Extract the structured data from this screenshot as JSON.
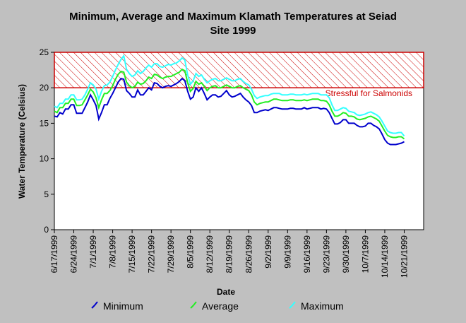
{
  "chart_data": {
    "type": "line",
    "title_lines": [
      "Minimum, Average and Maximum Klamath Temperatures at Seiad",
      "Site 1999"
    ],
    "x_label": "Date",
    "y_label": "Water Temperature (Celsius)",
    "ylim": [
      0,
      25
    ],
    "yticks": [
      0,
      5,
      10,
      15,
      20,
      25
    ],
    "categories": [
      "6/17/1999",
      null,
      null,
      null,
      null,
      null,
      null,
      "6/24/1999",
      null,
      null,
      null,
      null,
      null,
      null,
      "7/1/1999",
      null,
      null,
      null,
      null,
      null,
      null,
      "7/8/1999",
      null,
      null,
      null,
      null,
      null,
      null,
      "7/15/1999",
      null,
      null,
      null,
      null,
      null,
      null,
      "7/22/1999",
      null,
      null,
      null,
      null,
      null,
      null,
      "7/29/1999",
      null,
      null,
      null,
      null,
      null,
      null,
      "8/5/1999",
      null,
      null,
      null,
      null,
      null,
      null,
      "8/12/1999",
      null,
      null,
      null,
      null,
      null,
      null,
      "8/19/1999",
      null,
      null,
      null,
      null,
      null,
      null,
      "8/26/1999",
      null,
      null,
      null,
      null,
      null,
      null,
      "9/2/1999",
      null,
      null,
      null,
      null,
      null,
      null,
      "9/9/1999",
      null,
      null,
      null,
      null,
      null,
      null,
      "9/16/1999",
      null,
      null,
      null,
      null,
      null,
      null,
      "9/23/1999",
      null,
      null,
      null,
      null,
      null,
      null,
      "9/30/1999",
      null,
      null,
      null,
      null,
      null,
      null,
      "10/7/1999",
      null,
      null,
      null,
      null,
      null,
      null,
      "10/14/1999",
      null,
      null,
      null,
      null,
      null,
      null,
      "10/21/1999",
      null,
      null,
      null,
      null,
      null,
      null,
      null
    ],
    "threshold": {
      "from": 20,
      "to": 25,
      "label": "Stressful for Salmonids",
      "color": "#cc0000"
    },
    "series": [
      {
        "name": "Minimum",
        "color": "#0000cc",
        "values": [
          16.0,
          15.9,
          16.5,
          16.3,
          17.0,
          17.0,
          17.6,
          17.6,
          16.4,
          16.4,
          16.4,
          17.2,
          18.0,
          19.0,
          18.3,
          17.5,
          15.6,
          16.5,
          17.6,
          17.6,
          18.5,
          19.2,
          20.0,
          20.8,
          21.3,
          21.2,
          19.6,
          19.2,
          18.7,
          18.7,
          19.7,
          19.0,
          19.0,
          19.5,
          20.0,
          19.7,
          20.7,
          20.6,
          20.2,
          20.0,
          20.2,
          20.3,
          20.2,
          20.4,
          20.6,
          20.9,
          21.3,
          21.0,
          19.5,
          18.4,
          18.7,
          20.0,
          19.5,
          20.0,
          19.2,
          18.3,
          18.7,
          19.0,
          19.0,
          18.7,
          18.8,
          19.2,
          19.6,
          19.0,
          18.7,
          18.8,
          19.0,
          19.2,
          18.7,
          18.3,
          18.0,
          17.5,
          16.5,
          16.5,
          16.7,
          16.8,
          16.9,
          16.8,
          17.0,
          17.2,
          17.2,
          17.1,
          17.0,
          17.0,
          17.0,
          17.1,
          17.1,
          17.0,
          17.0,
          17.0,
          17.2,
          17.0,
          17.1,
          17.2,
          17.2,
          17.2,
          17.0,
          17.1,
          17.0,
          16.5,
          15.7,
          14.9,
          14.9,
          15.1,
          15.5,
          15.5,
          15.0,
          15.0,
          15.0,
          14.7,
          14.5,
          14.5,
          14.6,
          15.0,
          15.0,
          14.7,
          14.5,
          14.2,
          13.5,
          12.7,
          12.2,
          12.0,
          12.0,
          12.0,
          12.1,
          12.2,
          12.4,
          null,
          null,
          null,
          null,
          null,
          null,
          null
        ]
      },
      {
        "name": "Average",
        "color": "#22ee22",
        "values": [
          16.7,
          16.5,
          17.2,
          17.2,
          17.8,
          17.8,
          18.4,
          18.4,
          17.5,
          17.5,
          17.6,
          18.3,
          19.0,
          19.8,
          19.4,
          18.6,
          17.2,
          18.3,
          19.2,
          19.2,
          19.6,
          20.3,
          21.2,
          21.9,
          22.3,
          22.2,
          20.8,
          20.3,
          20.0,
          20.2,
          20.8,
          20.5,
          20.6,
          21.0,
          21.5,
          21.3,
          21.9,
          21.8,
          21.5,
          21.3,
          21.5,
          21.6,
          21.6,
          21.8,
          22.0,
          22.2,
          22.6,
          22.4,
          20.7,
          19.5,
          19.9,
          20.9,
          20.5,
          20.7,
          20.2,
          19.6,
          20.0,
          20.2,
          20.3,
          20.0,
          20.0,
          20.2,
          20.4,
          20.2,
          20.0,
          20.0,
          20.2,
          20.3,
          20.0,
          19.8,
          19.6,
          19.0,
          18.0,
          17.6,
          17.8,
          17.9,
          18.0,
          18.0,
          18.2,
          18.4,
          18.4,
          18.3,
          18.2,
          18.2,
          18.2,
          18.3,
          18.3,
          18.2,
          18.2,
          18.2,
          18.3,
          18.2,
          18.3,
          18.4,
          18.4,
          18.4,
          18.2,
          18.2,
          18.1,
          17.6,
          16.7,
          16.0,
          16.0,
          16.2,
          16.5,
          16.4,
          16.0,
          16.0,
          15.9,
          15.6,
          15.5,
          15.6,
          15.7,
          15.9,
          16.0,
          15.8,
          15.6,
          15.3,
          14.6,
          13.9,
          13.3,
          13.1,
          13.0,
          13.0,
          13.1,
          13.1,
          12.8,
          null,
          null,
          null,
          null,
          null,
          null,
          null
        ]
      },
      {
        "name": "Maximum",
        "color": "#33ffff",
        "values": [
          17.4,
          17.2,
          17.8,
          17.8,
          18.4,
          18.4,
          19.0,
          19.0,
          18.3,
          18.3,
          18.4,
          19.0,
          19.8,
          20.7,
          20.4,
          19.8,
          18.4,
          19.5,
          20.3,
          20.4,
          20.8,
          21.6,
          22.5,
          23.3,
          24.0,
          24.5,
          22.6,
          22.0,
          21.6,
          21.8,
          22.4,
          22.0,
          22.3,
          22.8,
          23.2,
          22.9,
          23.4,
          23.4,
          23.0,
          22.9,
          23.1,
          23.3,
          23.2,
          23.4,
          23.5,
          23.8,
          24.2,
          23.9,
          21.8,
          20.5,
          21.0,
          22.0,
          21.6,
          21.8,
          21.2,
          20.7,
          21.0,
          21.2,
          21.3,
          21.0,
          21.0,
          21.2,
          21.4,
          21.2,
          21.0,
          21.0,
          21.2,
          21.3,
          20.9,
          20.6,
          20.4,
          19.8,
          18.9,
          18.5,
          18.7,
          18.8,
          18.9,
          18.9,
          19.1,
          19.2,
          19.2,
          19.2,
          19.0,
          19.0,
          19.0,
          19.1,
          19.1,
          19.0,
          19.0,
          19.0,
          19.1,
          19.0,
          19.1,
          19.2,
          19.2,
          19.2,
          19.0,
          19.0,
          19.0,
          18.6,
          17.6,
          16.8,
          16.8,
          17.0,
          17.2,
          17.1,
          16.7,
          16.6,
          16.5,
          16.2,
          16.1,
          16.2,
          16.3,
          16.5,
          16.6,
          16.4,
          16.2,
          15.9,
          15.3,
          14.6,
          13.9,
          13.7,
          13.6,
          13.6,
          13.7,
          13.7,
          13.2,
          null,
          null,
          null,
          null,
          null,
          null,
          null
        ]
      }
    ]
  }
}
